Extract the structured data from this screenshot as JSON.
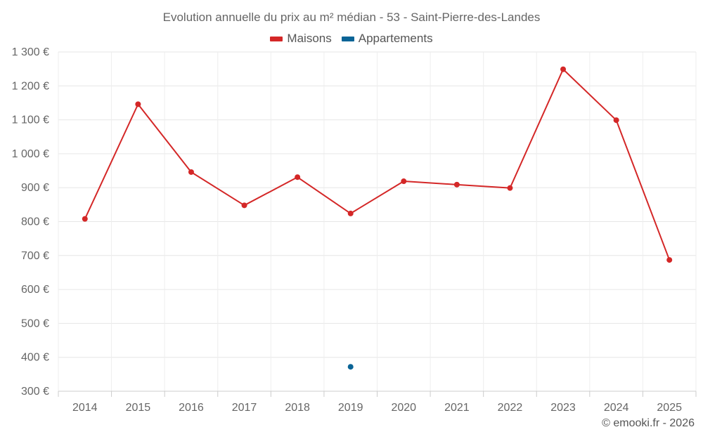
{
  "chart_data": {
    "type": "line",
    "title": "Evolution annuelle du prix au m² médian - 53 - Saint-Pierre-des-Landes",
    "categories": [
      "2014",
      "2015",
      "2016",
      "2017",
      "2018",
      "2019",
      "2020",
      "2021",
      "2022",
      "2023",
      "2024",
      "2025"
    ],
    "series": [
      {
        "name": "Maisons",
        "color": "#d42727",
        "values": [
          808,
          1146,
          946,
          848,
          931,
          824,
          919,
          909,
          899,
          1249,
          1099,
          687
        ]
      },
      {
        "name": "Appartements",
        "color": "#0a6496",
        "values": [
          null,
          null,
          null,
          null,
          null,
          372,
          null,
          null,
          null,
          null,
          null,
          null
        ]
      }
    ],
    "ylim": [
      300,
      1300
    ],
    "yticks": [
      300,
      400,
      500,
      600,
      700,
      800,
      900,
      1000,
      1100,
      1200,
      1300
    ],
    "ytick_labels": [
      "300 €",
      "400 €",
      "500 €",
      "600 €",
      "700 €",
      "800 €",
      "900 €",
      "1 000 €",
      "1 100 €",
      "1 200 €",
      "1 300 €"
    ],
    "grid": true,
    "legend": "top-center",
    "xlabel": "",
    "ylabel": ""
  },
  "credits": "© emooki.fr - 2026"
}
